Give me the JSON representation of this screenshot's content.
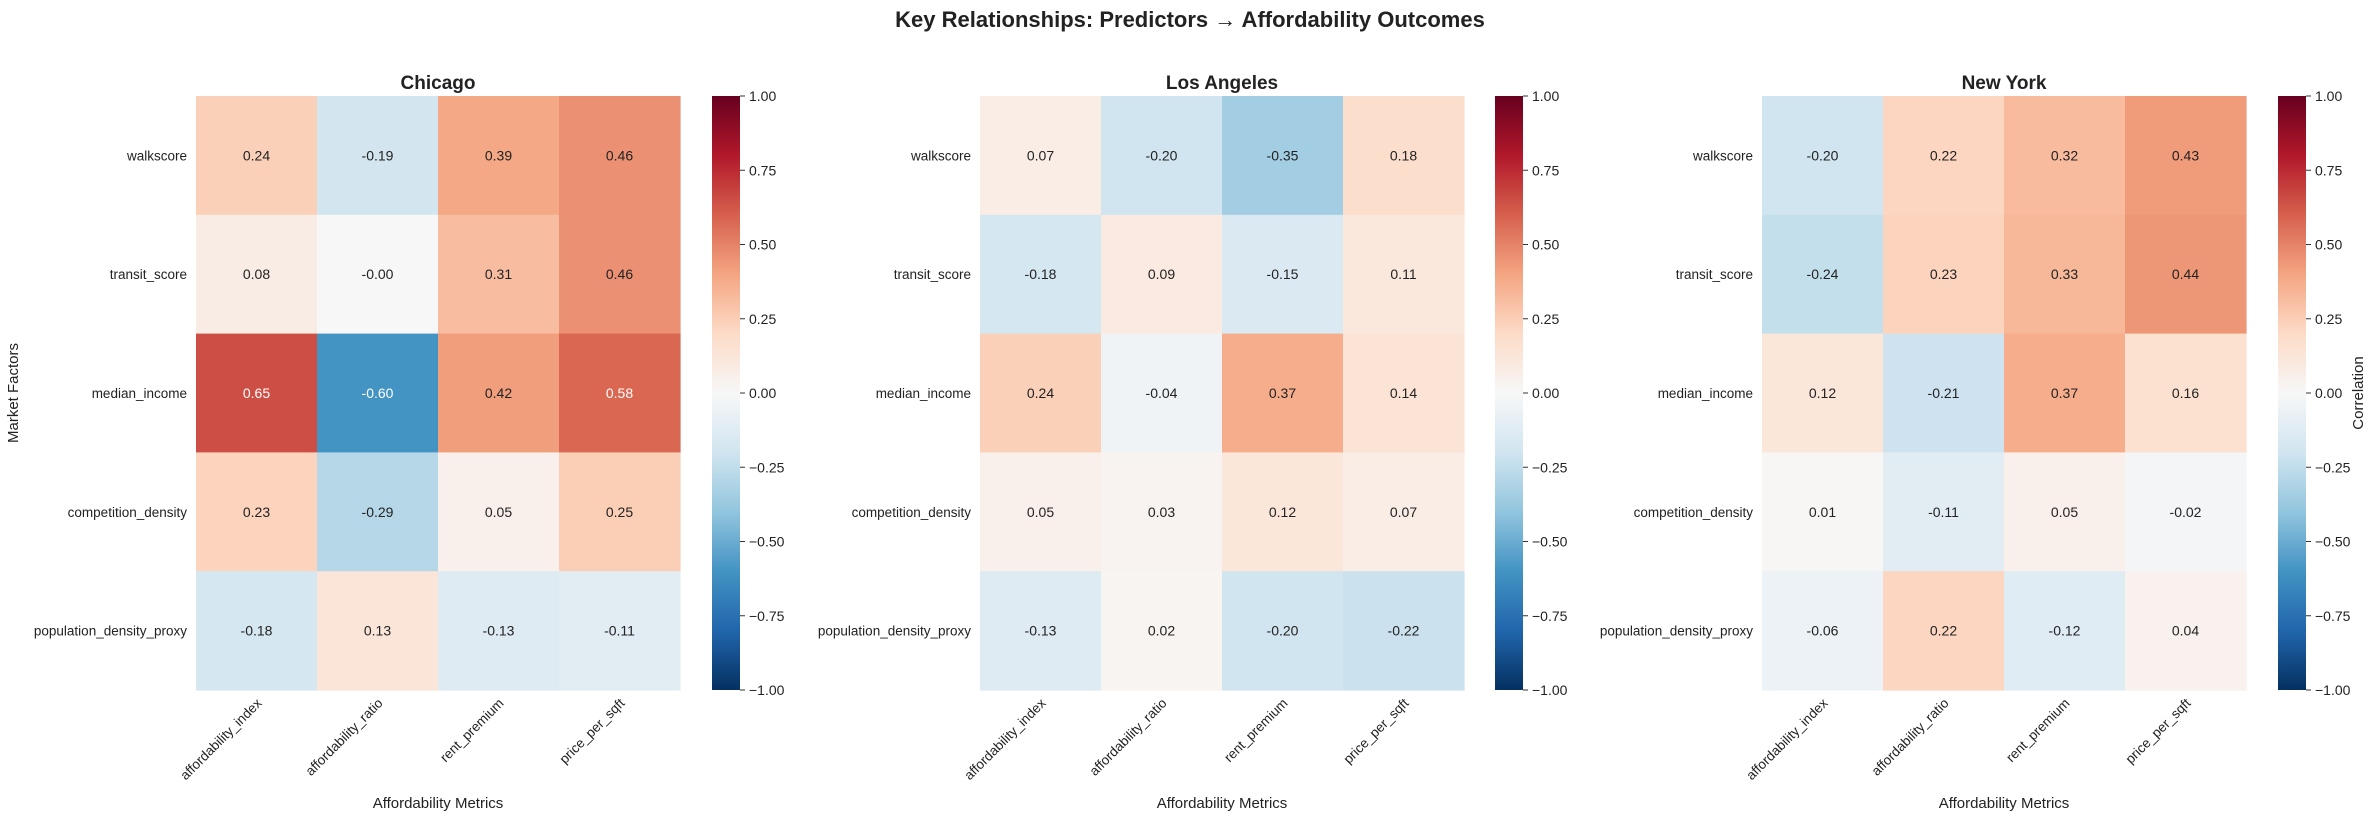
{
  "figure_title": "Key Relationships: Predictors → Affordability Outcomes",
  "colorbar_label": "Correlation",
  "chart_data": [
    {
      "type": "heatmap",
      "title": "Chicago",
      "xlabel": "Affordability Metrics",
      "ylabel": "Market Factors",
      "x_categories": [
        "affordability_index",
        "affordability_ratio",
        "rent_premium",
        "price_per_sqft"
      ],
      "y_categories": [
        "walkscore",
        "transit_score",
        "median_income",
        "competition_density",
        "population_density_proxy"
      ],
      "values": [
        [
          "0.24",
          "-0.19",
          "0.39",
          "0.46"
        ],
        [
          "0.08",
          "-0.00",
          "0.31",
          "0.46"
        ],
        [
          "0.65",
          "-0.60",
          "0.42",
          "0.58"
        ],
        [
          "0.23",
          "-0.29",
          "0.05",
          "0.25"
        ],
        [
          "-0.18",
          "0.13",
          "-0.13",
          "-0.11"
        ]
      ],
      "colorbar_ticks": [
        "1.00",
        "0.75",
        "0.50",
        "0.25",
        "0.00",
        "−0.25",
        "−0.50",
        "−0.75",
        "−1.00"
      ],
      "vmin": -1,
      "vmax": 1,
      "colormap": "RdBu_r"
    },
    {
      "type": "heatmap",
      "title": "Los Angeles",
      "xlabel": "Affordability Metrics",
      "ylabel": "",
      "x_categories": [
        "affordability_index",
        "affordability_ratio",
        "rent_premium",
        "price_per_sqft"
      ],
      "y_categories": [
        "walkscore",
        "transit_score",
        "median_income",
        "competition_density",
        "population_density_proxy"
      ],
      "values": [
        [
          "0.07",
          "-0.20",
          "-0.35",
          "0.18"
        ],
        [
          "-0.18",
          "0.09",
          "-0.15",
          "0.11"
        ],
        [
          "0.24",
          "-0.04",
          "0.37",
          "0.14"
        ],
        [
          "0.05",
          "0.03",
          "0.12",
          "0.07"
        ],
        [
          "-0.13",
          "0.02",
          "-0.20",
          "-0.22"
        ]
      ],
      "colorbar_ticks": [
        "1.00",
        "0.75",
        "0.50",
        "0.25",
        "0.00",
        "−0.25",
        "−0.50",
        "−0.75",
        "−1.00"
      ],
      "vmin": -1,
      "vmax": 1,
      "colormap": "RdBu_r"
    },
    {
      "type": "heatmap",
      "title": "New York",
      "xlabel": "Affordability Metrics",
      "ylabel": "",
      "x_categories": [
        "affordability_index",
        "affordability_ratio",
        "rent_premium",
        "price_per_sqft"
      ],
      "y_categories": [
        "walkscore",
        "transit_score",
        "median_income",
        "competition_density",
        "population_density_proxy"
      ],
      "values": [
        [
          "-0.20",
          "0.22",
          "0.32",
          "0.43"
        ],
        [
          "-0.24",
          "0.23",
          "0.33",
          "0.44"
        ],
        [
          "0.12",
          "-0.21",
          "0.37",
          "0.16"
        ],
        [
          "0.01",
          "-0.11",
          "0.05",
          "-0.02"
        ],
        [
          "-0.06",
          "0.22",
          "-0.12",
          "0.04"
        ]
      ],
      "colorbar_ticks": [
        "1.00",
        "0.75",
        "0.50",
        "0.25",
        "0.00",
        "−0.25",
        "−0.50",
        "−0.75",
        "−1.00"
      ],
      "vmin": -1,
      "vmax": 1,
      "colormap": "RdBu_r"
    }
  ]
}
